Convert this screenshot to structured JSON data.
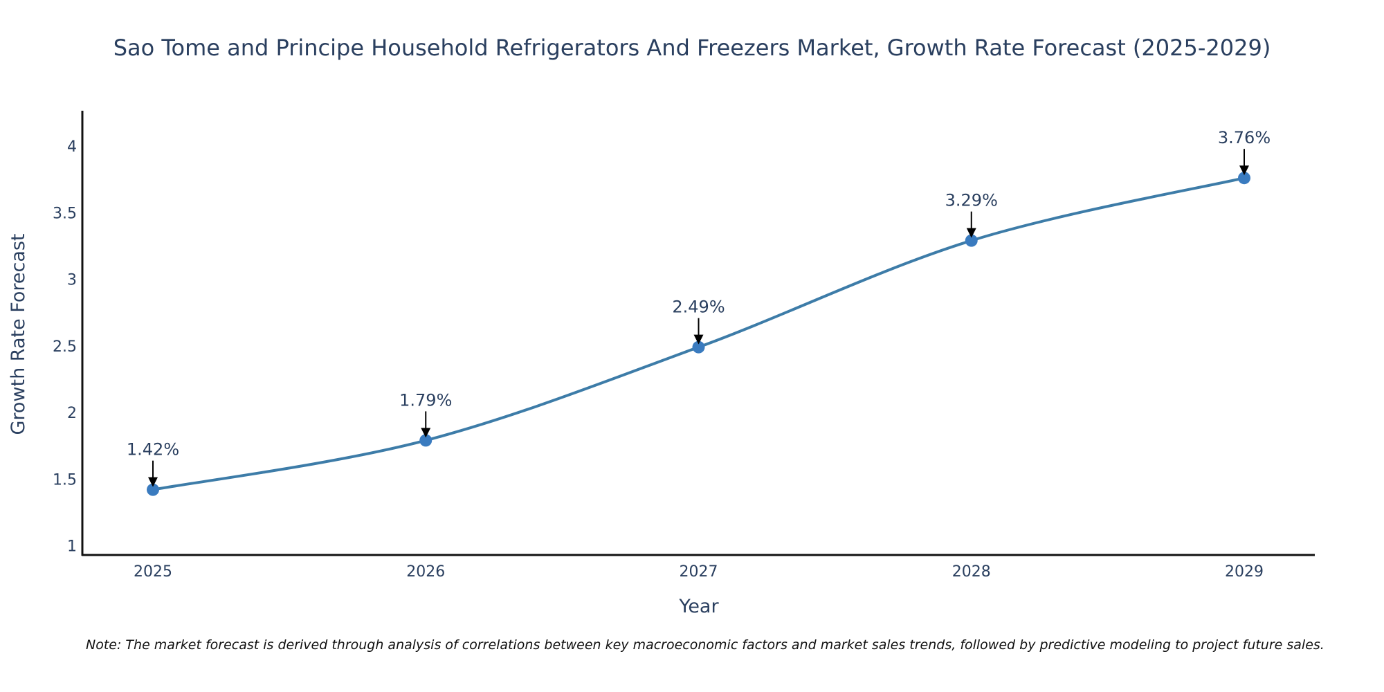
{
  "chart_data": {
    "type": "line",
    "title": "Sao Tome and Principe Household Refrigerators And Freezers Market, Growth Rate Forecast (2025-2029)",
    "xlabel": "Year",
    "ylabel": "Growth Rate Forecast",
    "categories": [
      "2025",
      "2026",
      "2027",
      "2028",
      "2029"
    ],
    "series": [
      {
        "name": "Growth Rate Forecast",
        "values": [
          1.42,
          1.79,
          2.49,
          3.29,
          3.76
        ]
      }
    ],
    "annotations": [
      "1.42%",
      "1.79%",
      "2.49%",
      "3.29%",
      "3.76%"
    ],
    "yticks": [
      "1",
      "1.5",
      "2",
      "2.5",
      "3",
      "3.5",
      "4"
    ],
    "ylim": [
      0.92,
      4.25
    ],
    "grid": false,
    "line_color": "#3d7ca8",
    "marker_color": "#3a7bbf"
  },
  "note": "Note: The market forecast is derived through analysis of correlations between key macroeconomic factors and market sales trends, followed by predictive modeling to project future sales."
}
